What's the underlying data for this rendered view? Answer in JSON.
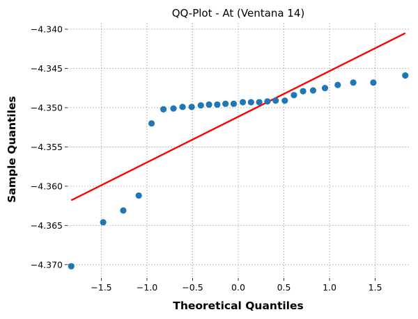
{
  "chart_data": {
    "type": "scatter",
    "title": "QQ-Plot - At (Ventana 14)",
    "xlabel": "Theoretical Quantiles",
    "ylabel": "Sample Quantiles",
    "xlim": [
      -1.87,
      1.87
    ],
    "ylim": [
      -4.3717,
      -4.3392
    ],
    "xticks": [
      -1.5,
      -1.0,
      -0.5,
      0.0,
      0.5,
      1.0,
      1.5
    ],
    "xtick_labels": [
      "−1.5",
      "−1.0",
      "−0.5",
      "0.0",
      "0.5",
      "1.0",
      "1.5"
    ],
    "yticks": [
      -4.37,
      -4.365,
      -4.36,
      -4.355,
      -4.35,
      -4.345,
      -4.34
    ],
    "ytick_labels": [
      "−4.370",
      "−4.365",
      "−4.360",
      "−4.355",
      "−4.350",
      "−4.345",
      "−4.340"
    ],
    "grid": true,
    "points": {
      "color": "#1f77b4",
      "x": [
        -1.83,
        -1.48,
        -1.26,
        -1.09,
        -0.95,
        -0.82,
        -0.71,
        -0.61,
        -0.51,
        -0.41,
        -0.32,
        -0.23,
        -0.14,
        -0.05,
        0.05,
        0.14,
        0.23,
        0.32,
        0.41,
        0.51,
        0.61,
        0.71,
        0.82,
        0.95,
        1.09,
        1.26,
        1.48,
        1.83
      ],
      "y": [
        -4.3702,
        -4.3646,
        -4.3631,
        -4.3612,
        -4.352,
        -4.3502,
        -4.3501,
        -4.3499,
        -4.3499,
        -4.3497,
        -4.3496,
        -4.3496,
        -4.3495,
        -4.3495,
        -4.3493,
        -4.3493,
        -4.3493,
        -4.3492,
        -4.3491,
        -4.3491,
        -4.3484,
        -4.3479,
        -4.3478,
        -4.3475,
        -4.3471,
        -4.3468,
        -4.3468,
        -4.3459
      ]
    },
    "reference_line": {
      "color": "#ff0000",
      "x": [
        -1.83,
        1.83
      ],
      "y": [
        -4.3618,
        -4.3405
      ]
    }
  }
}
